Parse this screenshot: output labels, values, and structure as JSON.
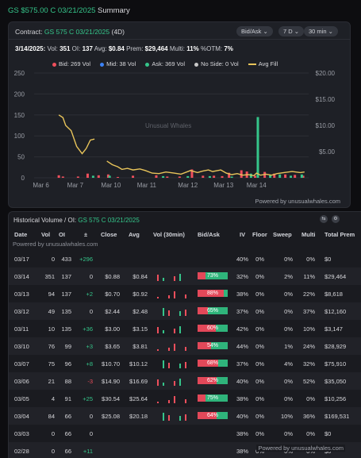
{
  "header": {
    "symbol": "GS $575.00 C 03/21/2025",
    "suffix": "Summary"
  },
  "chart_card": {
    "contract_label": "Contract:",
    "contract_symbol": "GS 575 C 03/21/2025",
    "contract_days": "(4D)",
    "pills": [
      "Bid/Ask ⌄",
      "7 D ⌄",
      "30 min ⌄"
    ],
    "info": {
      "date": "3/14/2025:",
      "vol_label": "Vol:",
      "vol": "351",
      "oi_label": "OI:",
      "oi": "137",
      "avg_label": "Avg:",
      "avg": "$0.84",
      "prem_label": "Prem:",
      "prem": "$29,464",
      "multi_label": "Multi:",
      "multi": "11%",
      "otm_label": "%OTM:",
      "otm": "7%"
    },
    "legend": [
      "Bid: 269 Vol",
      "Mid: 38 Vol",
      "Ask: 369 Vol",
      "No Side: 0 Vol",
      "Avg Fill"
    ],
    "watermark": "Unusual Whales",
    "powered": "Powered by unusualwhales.com"
  },
  "colors": {
    "bid": "#ef4f5c",
    "mid": "#3b82f6",
    "ask": "#35c58a",
    "noside": "#c8c8c8",
    "avg": "#e8c45a"
  },
  "chart_data": {
    "type": "bar",
    "x_tick_labels": [
      "Mar 6",
      "Mar 7",
      "Mar 10",
      "Mar 11",
      "Mar 12",
      "Mar 13",
      "Mar 14"
    ],
    "y_left_ticks": [
      "0",
      "50",
      "100",
      "150",
      "200",
      "250"
    ],
    "y_right_ticks": [
      "$5.00",
      "$10.00",
      "$15.00",
      "$20.00"
    ],
    "ylim_left": [
      0,
      250
    ],
    "ylim_right": [
      0,
      20
    ],
    "series": [
      {
        "name": "Bid",
        "values": [
          [
            0.9,
            6
          ],
          [
            1.05,
            3
          ],
          [
            1.6,
            3
          ],
          [
            1.95,
            10
          ],
          [
            2.35,
            6
          ],
          [
            2.7,
            8
          ],
          [
            3.05,
            2
          ],
          [
            3.6,
            5
          ],
          [
            4.45,
            6
          ],
          [
            4.85,
            3
          ],
          [
            5.3,
            3
          ],
          [
            5.75,
            20
          ],
          [
            6.15,
            5
          ],
          [
            6.55,
            5
          ],
          [
            6.85,
            4
          ],
          [
            7.1,
            12
          ],
          [
            7.55,
            18
          ],
          [
            7.75,
            15
          ],
          [
            8.05,
            5
          ],
          [
            8.4,
            14
          ],
          [
            8.75,
            10
          ],
          [
            9.15,
            8
          ],
          [
            9.5,
            7
          ],
          [
            9.8,
            5
          ]
        ]
      },
      {
        "name": "Ask",
        "values": [
          [
            2.15,
            5
          ],
          [
            2.75,
            5
          ],
          [
            4.7,
            4
          ],
          [
            5.6,
            4
          ],
          [
            6.4,
            4
          ],
          [
            7.2,
            3
          ],
          [
            7.9,
            10
          ],
          [
            8.15,
            145
          ],
          [
            8.6,
            6
          ],
          [
            8.95,
            8
          ],
          [
            9.35,
            5
          ],
          [
            9.75,
            8
          ]
        ]
      },
      {
        "name": "Avg Fill",
        "points": [
          [
            0.9,
            12.0
          ],
          [
            1.05,
            11.5
          ],
          [
            1.15,
            10.0
          ],
          [
            1.35,
            9.0
          ],
          [
            1.55,
            6.0
          ],
          [
            1.75,
            4.6
          ],
          [
            1.9,
            5.6
          ],
          [
            2.05,
            7.2
          ],
          [
            2.2,
            7.4
          ],
          [
            2.65,
            3.2
          ],
          [
            2.85,
            2.5
          ],
          [
            3.05,
            2.1
          ],
          [
            3.2,
            1.6
          ],
          [
            3.4,
            1.8
          ],
          [
            3.6,
            1.5
          ],
          [
            3.85,
            1.7
          ],
          [
            4.05,
            1.4
          ],
          [
            4.3,
            0.9
          ],
          [
            4.55,
            0.8
          ],
          [
            4.8,
            1.1
          ],
          [
            5.1,
            0.9
          ],
          [
            5.35,
            0.7
          ],
          [
            5.7,
            1.4
          ],
          [
            5.95,
            1.0
          ],
          [
            6.15,
            1.3
          ],
          [
            6.35,
            1.5
          ],
          [
            6.5,
            1.2
          ],
          [
            6.8,
            1.5
          ],
          [
            7.0,
            0.9
          ],
          [
            7.2,
            0.6
          ],
          [
            7.4,
            0.8
          ],
          [
            7.6,
            0.5
          ],
          [
            7.8,
            0.6
          ],
          [
            8.0,
            0.4
          ],
          [
            8.1,
            0.9
          ],
          [
            8.25,
            0.5
          ],
          [
            8.45,
            0.7
          ],
          [
            8.65,
            0.5
          ],
          [
            8.85,
            0.8
          ],
          [
            9.1,
            1.0
          ],
          [
            9.4,
            1.2
          ],
          [
            9.7,
            1.0
          ],
          [
            9.85,
            1.1
          ]
        ]
      }
    ]
  },
  "table": {
    "title_prefix": "Historical Volume / OI:",
    "title_symbol": "GS 575 C 03/21/2025",
    "icons": [
      "layers-icon",
      "settings-icon"
    ],
    "columns": [
      "Date",
      "Vol",
      "OI",
      "±",
      "Close",
      "Avg",
      "Vol (30min)",
      "Bid/Ask",
      "IV",
      "Floor",
      "Sweep",
      "Multi",
      "Total Prem"
    ],
    "powered_top": "Powered by unusualwhales.com",
    "powered_bottom": "Powered by unusualwhales.com",
    "rows": [
      {
        "date": "03/17",
        "vol": "0",
        "oi": "433",
        "chg": "+296",
        "close": "",
        "avg": "",
        "bidask": null,
        "ask_share": 0,
        "iv": "40%",
        "floor": "0%",
        "sweep": "0%",
        "multi": "0%",
        "prem": "$0"
      },
      {
        "date": "03/14",
        "vol": "351",
        "oi": "137",
        "chg": "0",
        "close": "$0.88",
        "avg": "$0.84",
        "bidask": "73%",
        "ask_share": 0.73,
        "iv": "32%",
        "floor": "0%",
        "sweep": "2%",
        "multi": "11%",
        "prem": "$29,464"
      },
      {
        "date": "03/13",
        "vol": "94",
        "oi": "137",
        "chg": "+2",
        "close": "$0.70",
        "avg": "$0.92",
        "bidask": "88%",
        "ask_share": 0.12,
        "iv": "38%",
        "floor": "0%",
        "sweep": "0%",
        "multi": "22%",
        "prem": "$8,618"
      },
      {
        "date": "03/12",
        "vol": "49",
        "oi": "135",
        "chg": "0",
        "close": "$2.44",
        "avg": "$2.48",
        "bidask": "65%",
        "ask_share": 0.65,
        "iv": "37%",
        "floor": "0%",
        "sweep": "0%",
        "multi": "37%",
        "prem": "$12,160"
      },
      {
        "date": "03/11",
        "vol": "10",
        "oi": "135",
        "chg": "+36",
        "close": "$3.00",
        "avg": "$3.15",
        "bidask": "60%",
        "ask_share": 0.4,
        "iv": "42%",
        "floor": "0%",
        "sweep": "0%",
        "multi": "10%",
        "prem": "$3,147"
      },
      {
        "date": "03/10",
        "vol": "76",
        "oi": "99",
        "chg": "+3",
        "close": "$3.65",
        "avg": "$3.81",
        "bidask": "54%",
        "ask_share": 0.54,
        "iv": "44%",
        "floor": "0%",
        "sweep": "1%",
        "multi": "24%",
        "prem": "$28,929"
      },
      {
        "date": "03/07",
        "vol": "75",
        "oi": "96",
        "chg": "+8",
        "close": "$10.70",
        "avg": "$10.12",
        "bidask": "68%",
        "ask_share": 0.32,
        "iv": "37%",
        "floor": "0%",
        "sweep": "4%",
        "multi": "32%",
        "prem": "$75,910"
      },
      {
        "date": "03/06",
        "vol": "21",
        "oi": "88",
        "chg": "-3",
        "close": "$14.90",
        "avg": "$16.69",
        "bidask": "62%",
        "ask_share": 0.38,
        "iv": "40%",
        "floor": "0%",
        "sweep": "0%",
        "multi": "52%",
        "prem": "$35,050"
      },
      {
        "date": "03/05",
        "vol": "4",
        "oi": "91",
        "chg": "+25",
        "close": "$30.54",
        "avg": "$25.64",
        "bidask": "75%",
        "ask_share": 0.75,
        "iv": "38%",
        "floor": "0%",
        "sweep": "0%",
        "multi": "0%",
        "prem": "$10,256"
      },
      {
        "date": "03/04",
        "vol": "84",
        "oi": "66",
        "chg": "0",
        "close": "$25.08",
        "avg": "$20.18",
        "bidask": "64%",
        "ask_share": 0.36,
        "iv": "40%",
        "floor": "0%",
        "sweep": "10%",
        "multi": "36%",
        "prem": "$169,531"
      },
      {
        "date": "03/03",
        "vol": "0",
        "oi": "66",
        "chg": "0",
        "close": "",
        "avg": "",
        "bidask": null,
        "ask_share": 0,
        "iv": "38%",
        "floor": "0%",
        "sweep": "0%",
        "multi": "0%",
        "prem": "$0"
      },
      {
        "date": "02/28",
        "vol": "0",
        "oi": "66",
        "chg": "+11",
        "close": "",
        "avg": "",
        "bidask": null,
        "ask_share": 0,
        "iv": "38%",
        "floor": "0%",
        "sweep": "0%",
        "multi": "0%",
        "prem": "$0"
      }
    ]
  }
}
